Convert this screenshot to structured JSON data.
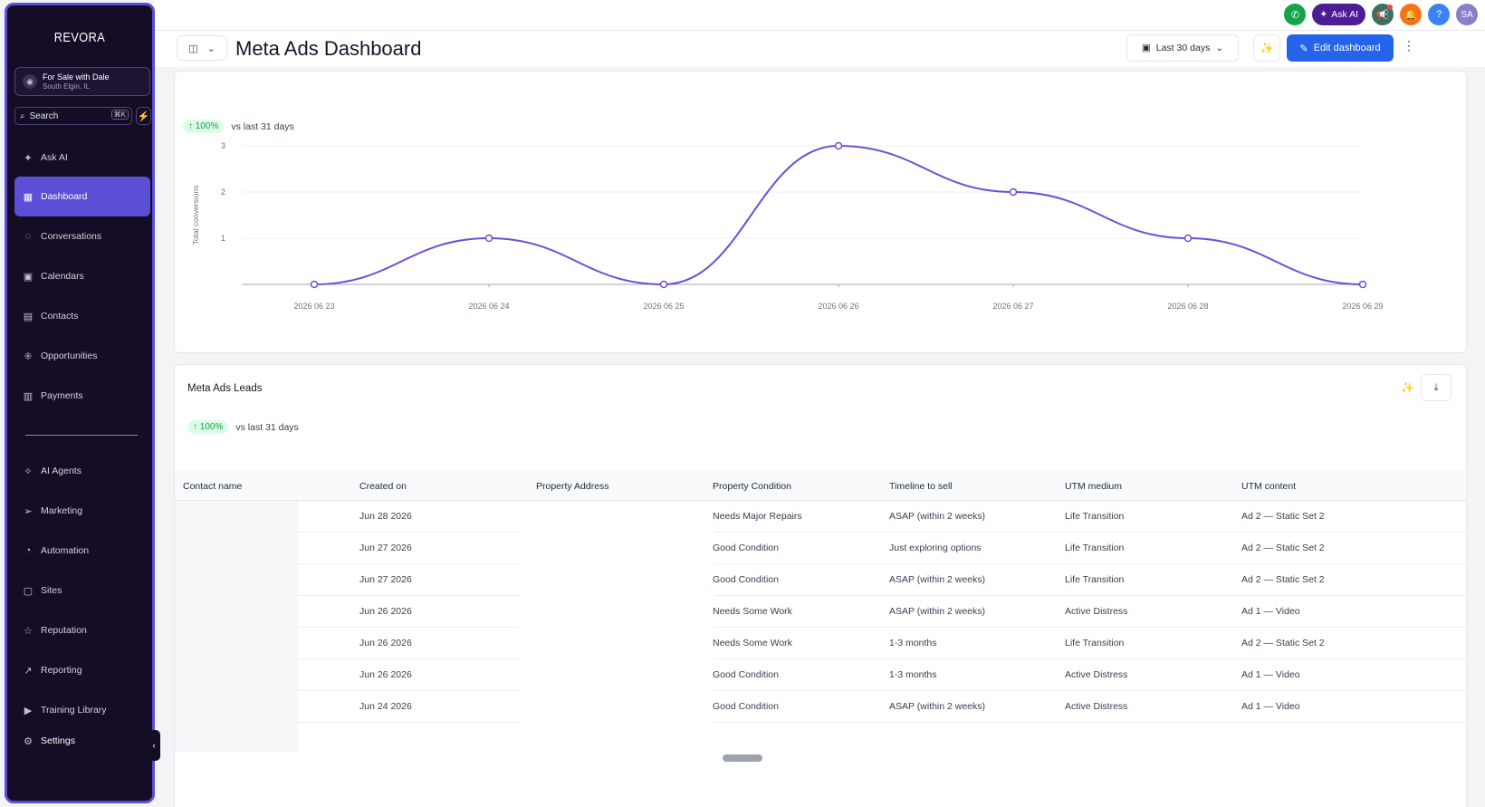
{
  "sidebar": {
    "logo": "REVORA",
    "location": {
      "name": "For Sale with Dale",
      "sub": "South Elgin, IL"
    },
    "search": {
      "label": "Search",
      "shortcut": "⌘K"
    },
    "items": [
      {
        "label": "Ask AI",
        "icon": "sparkle-icon"
      },
      {
        "label": "Dashboard",
        "icon": "grid-icon"
      },
      {
        "label": "Conversations",
        "icon": "chat-icon"
      },
      {
        "label": "Calendars",
        "icon": "calendar-icon"
      },
      {
        "label": "Contacts",
        "icon": "contacts-icon"
      },
      {
        "label": "Opportunities",
        "icon": "opportunities-icon"
      },
      {
        "label": "Payments",
        "icon": "payments-icon"
      },
      {
        "label": "AI Agents",
        "icon": "ai-agents-icon"
      },
      {
        "label": "Marketing",
        "icon": "send-icon"
      },
      {
        "label": "Automation",
        "icon": "automation-icon"
      },
      {
        "label": "Sites",
        "icon": "sites-icon"
      },
      {
        "label": "Reputation",
        "icon": "star-icon"
      },
      {
        "label": "Reporting",
        "icon": "trend-icon"
      },
      {
        "label": "Training Library",
        "icon": "play-icon"
      },
      {
        "label": "Settings",
        "icon": "gear-icon"
      }
    ]
  },
  "topbar": {
    "ask_ai": "Ask AI",
    "avatar": "SA",
    "help": "?"
  },
  "header": {
    "title": "Meta Ads Dashboard",
    "date_range": "Last 30 days",
    "edit_label": "Edit dashboard"
  },
  "chart_card": {
    "badge": "100%",
    "comparison": "vs last 31 days"
  },
  "chart_data": {
    "type": "line",
    "title": "",
    "xlabel": "",
    "ylabel": "Total conversions",
    "x": [
      "2026 06 23",
      "2026 06 24",
      "2026 06 25",
      "2026 06 26",
      "2026 06 27",
      "2026 06 28",
      "2026 06 29"
    ],
    "y_ticks": [
      "1",
      "2",
      "3"
    ],
    "ylim": [
      0,
      3
    ],
    "series": [
      {
        "values": [
          0,
          1,
          0,
          3,
          2,
          1,
          0
        ]
      }
    ],
    "grid": true,
    "color": "#6d4fd6"
  },
  "leads": {
    "title": "Meta Ads Leads",
    "badge": "100%",
    "comparison": "vs last 31 days",
    "columns": [
      "Contact name",
      "Created on",
      "Property Address",
      "Property Condition",
      "Timeline to sell",
      "UTM medium",
      "UTM content"
    ],
    "rows": [
      {
        "created": "Jun 28 2026",
        "condition": "Needs Major Repairs",
        "timeline": "ASAP (within 2 weeks)",
        "medium": "Life Transition",
        "content": "Ad 2 — Static Set 2"
      },
      {
        "created": "Jun 27 2026",
        "condition": "Good Condition",
        "timeline": "Just exploring options",
        "medium": "Life Transition",
        "content": "Ad 2 — Static Set 2"
      },
      {
        "created": "Jun 27 2026",
        "condition": "Good Condition",
        "timeline": "ASAP (within 2 weeks)",
        "medium": "Life Transition",
        "content": "Ad 2 — Static Set 2"
      },
      {
        "created": "Jun 26 2026",
        "condition": "Needs Some Work",
        "timeline": "ASAP (within 2 weeks)",
        "medium": "Active Distress",
        "content": "Ad 1 — Video"
      },
      {
        "created": "Jun 26 2026",
        "condition": "Needs Some Work",
        "timeline": "1-3 months",
        "medium": "Life Transition",
        "content": "Ad 2 — Static Set 2"
      },
      {
        "created": "Jun 26 2026",
        "condition": "Good Condition",
        "timeline": "1-3 months",
        "medium": "Active Distress",
        "content": "Ad 1 — Video"
      },
      {
        "created": "Jun 24 2026",
        "condition": "Good Condition",
        "timeline": "ASAP (within 2 weeks)",
        "medium": "Active Distress",
        "content": "Ad 1 — Video"
      }
    ]
  }
}
